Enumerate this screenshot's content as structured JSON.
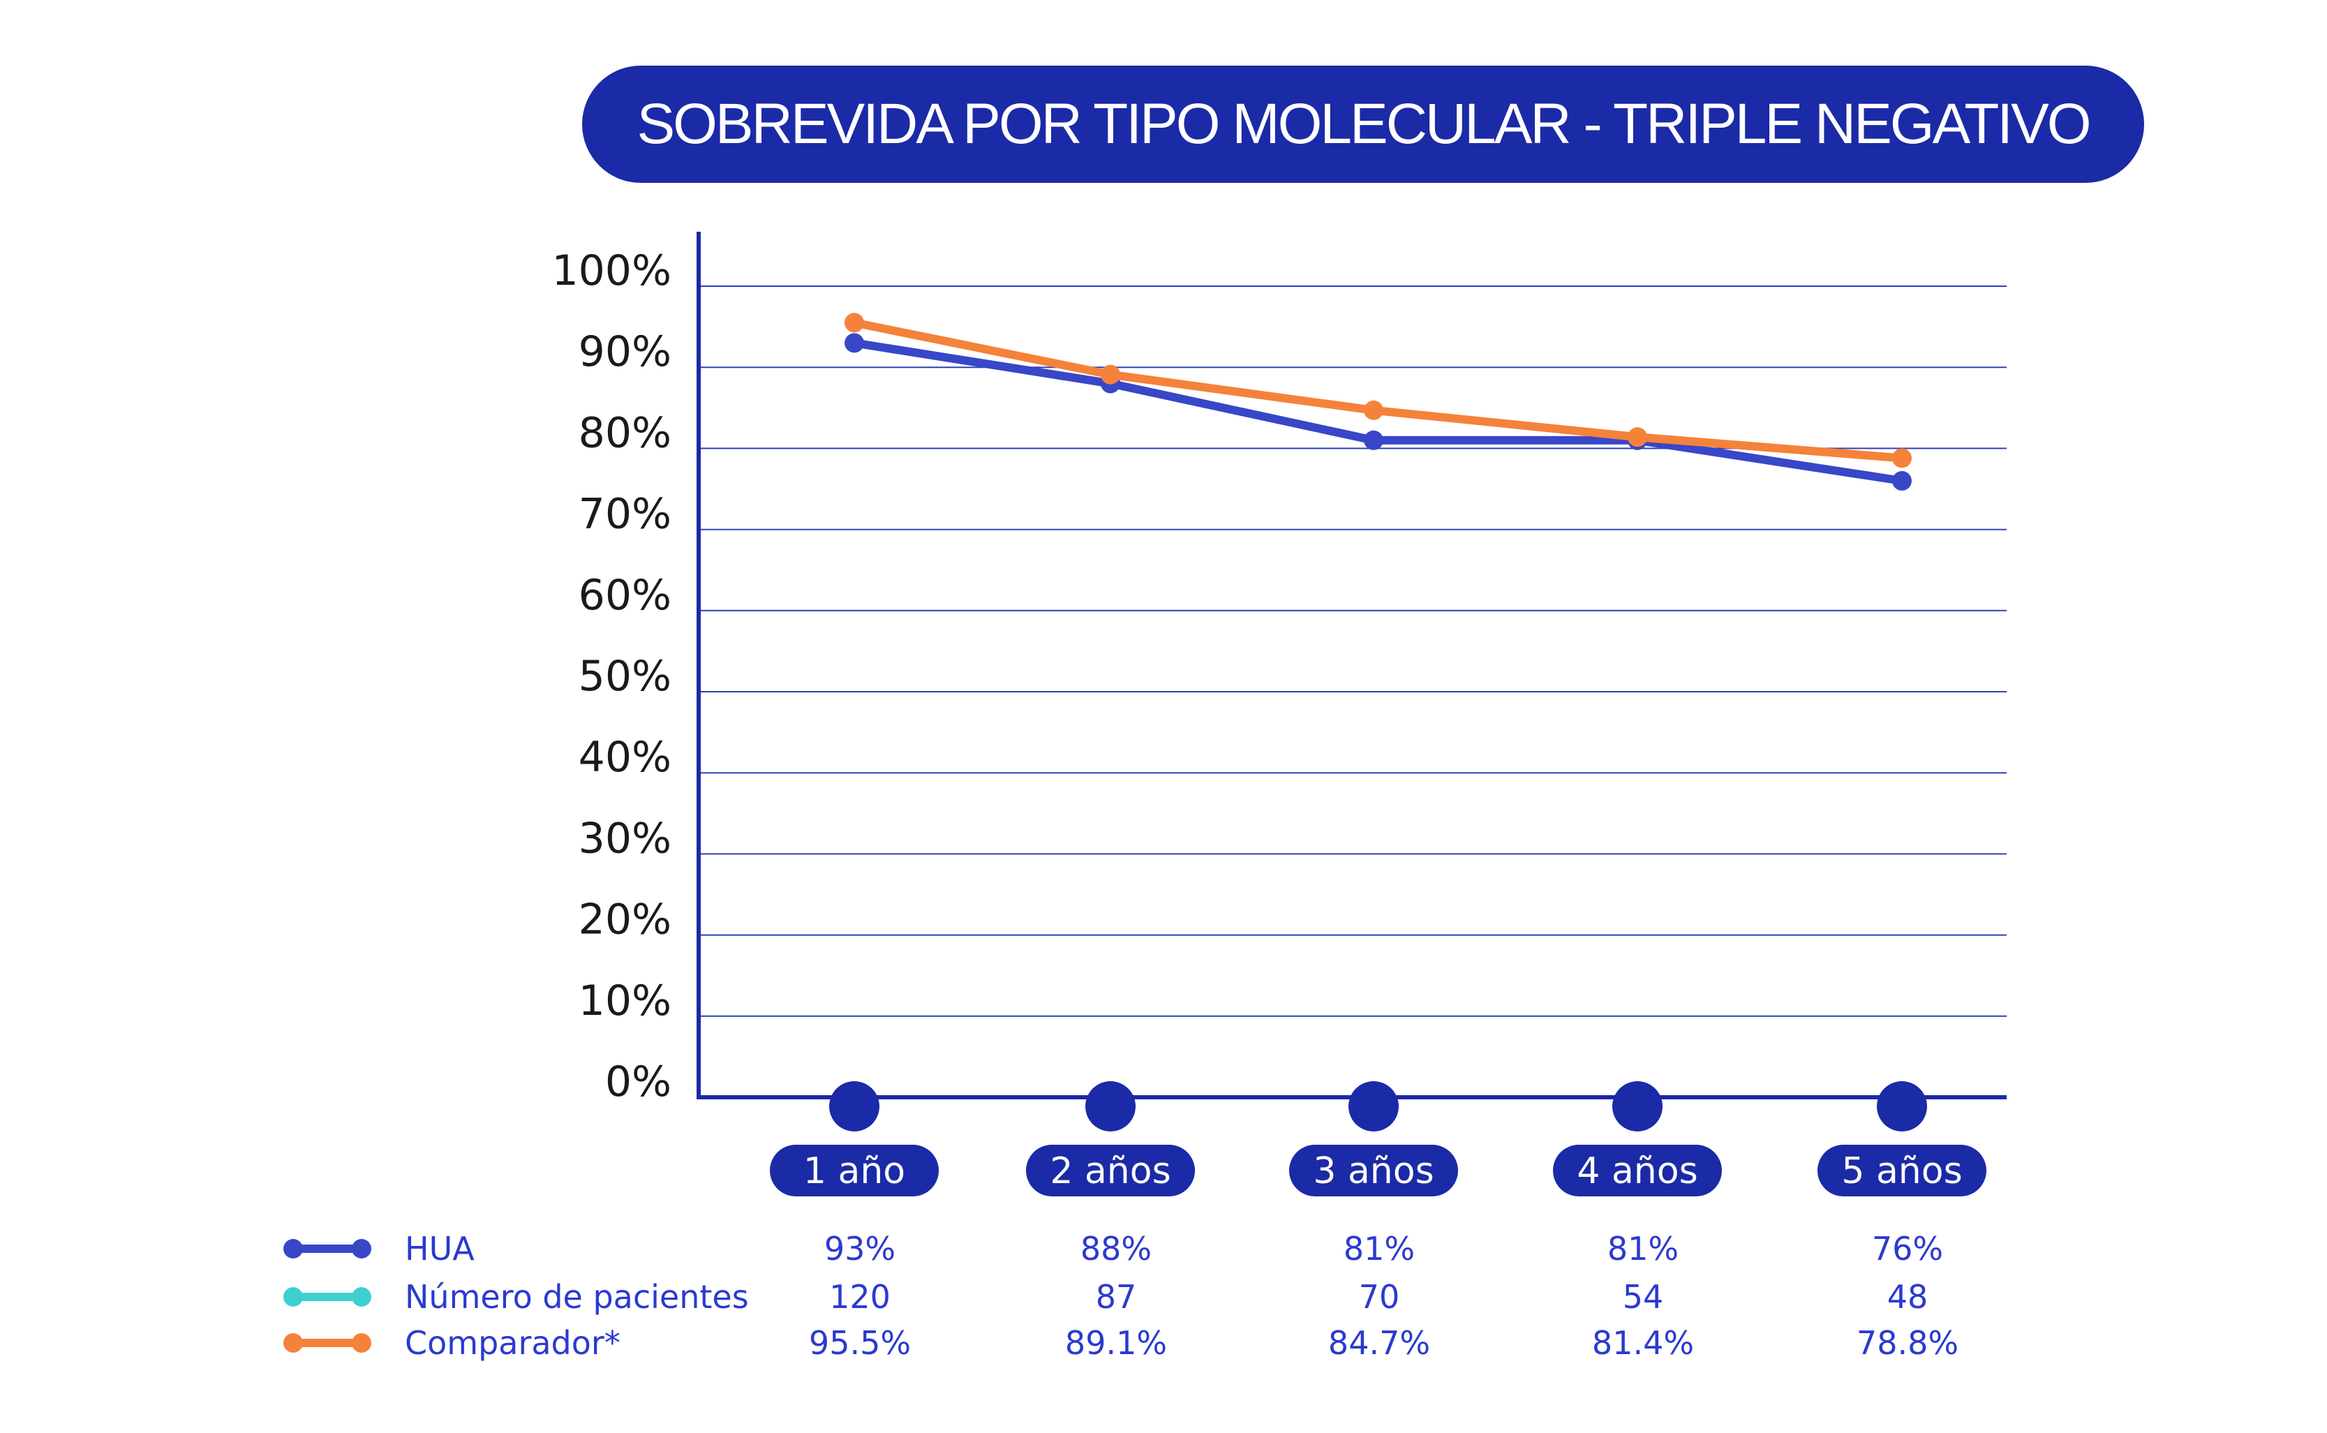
{
  "chart_data": {
    "type": "line",
    "title": "SOBREVIDA POR TIPO MOLECULAR - TRIPLE NEGATIVO",
    "categories": [
      "1 año",
      "2 años",
      "3 años",
      "4 años",
      "5 años"
    ],
    "yticks": [
      "0%",
      "10%",
      "20%",
      "30%",
      "40%",
      "50%",
      "60%",
      "70%",
      "80%",
      "90%",
      "100%"
    ],
    "ylim": [
      0,
      100
    ],
    "grid": true,
    "legend_placement": "bottom-left",
    "series": [
      {
        "name": "HUA",
        "color": "#3747c8",
        "values": [
          93,
          88,
          81,
          81,
          76
        ],
        "labels": [
          "93%",
          "88%",
          "81%",
          "81%",
          "76%"
        ],
        "plotted": true
      },
      {
        "name": "Número de pacientes",
        "color": "#3fcfcf",
        "values": [
          120,
          87,
          70,
          54,
          48
        ],
        "labels": [
          "120",
          "87",
          "70",
          "54",
          "48"
        ],
        "plotted": false
      },
      {
        "name": "Comparador*",
        "color": "#f5823a",
        "values": [
          95.5,
          89.1,
          84.7,
          81.4,
          78.8
        ],
        "labels": [
          "95.5%",
          "89.1%",
          "84.7%",
          "81.4%",
          "78.8%"
        ],
        "plotted": true
      }
    ],
    "colors": {
      "axis": "#1b2aa6",
      "grid": "#3040b8",
      "pill": "#1b2aa6"
    }
  }
}
